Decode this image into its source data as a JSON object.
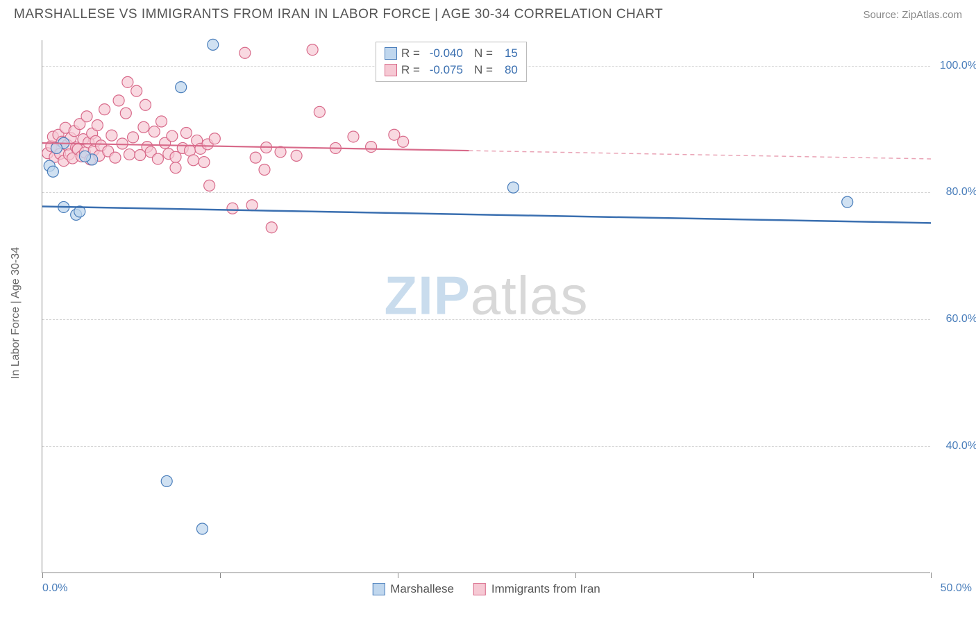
{
  "header": {
    "title": "MARSHALLESE VS IMMIGRANTS FROM IRAN IN LABOR FORCE | AGE 30-34 CORRELATION CHART",
    "source": "Source: ZipAtlas.com"
  },
  "chart": {
    "type": "scatter",
    "ylabel": "In Labor Force | Age 30-34",
    "watermark_a": "ZIP",
    "watermark_b": "atlas",
    "xlim": [
      0,
      50
    ],
    "ylim": [
      20,
      104
    ],
    "x_ticks": [
      0,
      10,
      20,
      30,
      40,
      50
    ],
    "x_tick_labels": {
      "left": "0.0%",
      "right": "50.0%"
    },
    "y_grid": [
      40,
      60,
      80,
      100
    ],
    "y_tick_labels": [
      "40.0%",
      "60.0%",
      "80.0%",
      "100.0%"
    ],
    "background_color": "#ffffff",
    "grid_color": "#d5d5d5",
    "axis_color": "#888888",
    "marker_radius": 8,
    "series": {
      "blue": {
        "name": "Marshallese",
        "color_fill": "#c0d7ee",
        "color_stroke": "#4a7ebb",
        "R": "-0.040",
        "N": "15",
        "trend": {
          "x1": 0,
          "y1": 77.8,
          "x2": 50,
          "y2": 75.2
        },
        "points": [
          {
            "x": 0.4,
            "y": 84.2
          },
          {
            "x": 1.2,
            "y": 87.8
          },
          {
            "x": 0.6,
            "y": 83.3
          },
          {
            "x": 1.2,
            "y": 77.7
          },
          {
            "x": 1.9,
            "y": 76.5
          },
          {
            "x": 2.1,
            "y": 77.0
          },
          {
            "x": 2.8,
            "y": 85.2
          },
          {
            "x": 7.0,
            "y": 34.5
          },
          {
            "x": 7.8,
            "y": 96.6
          },
          {
            "x": 9.0,
            "y": 27.0
          },
          {
            "x": 9.6,
            "y": 103.3
          },
          {
            "x": 26.5,
            "y": 80.8
          },
          {
            "x": 45.3,
            "y": 78.5
          },
          {
            "x": 2.4,
            "y": 85.7
          },
          {
            "x": 0.8,
            "y": 87.0
          }
        ]
      },
      "pink": {
        "name": "Immigrants from Iran",
        "color_fill": "#f6c9d4",
        "color_stroke": "#d86a8a",
        "R": "-0.075",
        "N": "80",
        "trend_solid": {
          "x1": 0,
          "y1": 87.8,
          "x2": 24,
          "y2": 86.6
        },
        "trend_dash": {
          "x1": 24,
          "y1": 86.6,
          "x2": 50,
          "y2": 85.3
        },
        "points": [
          {
            "x": 0.3,
            "y": 86.2
          },
          {
            "x": 0.5,
            "y": 87.3
          },
          {
            "x": 0.6,
            "y": 88.8
          },
          {
            "x": 0.7,
            "y": 85.6
          },
          {
            "x": 0.8,
            "y": 87.0
          },
          {
            "x": 0.9,
            "y": 89.1
          },
          {
            "x": 1.0,
            "y": 86.1
          },
          {
            "x": 1.1,
            "y": 88.0
          },
          {
            "x": 1.2,
            "y": 85.0
          },
          {
            "x": 1.3,
            "y": 90.2
          },
          {
            "x": 1.4,
            "y": 87.5
          },
          {
            "x": 1.5,
            "y": 86.0
          },
          {
            "x": 1.6,
            "y": 88.6
          },
          {
            "x": 1.7,
            "y": 85.4
          },
          {
            "x": 1.8,
            "y": 89.7
          },
          {
            "x": 1.9,
            "y": 87.1
          },
          {
            "x": 2.0,
            "y": 86.8
          },
          {
            "x": 2.1,
            "y": 90.8
          },
          {
            "x": 2.2,
            "y": 85.7
          },
          {
            "x": 2.3,
            "y": 88.4
          },
          {
            "x": 2.4,
            "y": 86.3
          },
          {
            "x": 2.5,
            "y": 92.0
          },
          {
            "x": 2.6,
            "y": 87.9
          },
          {
            "x": 2.7,
            "y": 85.2
          },
          {
            "x": 2.8,
            "y": 89.3
          },
          {
            "x": 2.9,
            "y": 86.7
          },
          {
            "x": 3.0,
            "y": 88.1
          },
          {
            "x": 3.1,
            "y": 90.6
          },
          {
            "x": 3.2,
            "y": 85.8
          },
          {
            "x": 3.3,
            "y": 87.4
          },
          {
            "x": 3.5,
            "y": 93.1
          },
          {
            "x": 3.7,
            "y": 86.5
          },
          {
            "x": 3.9,
            "y": 89.0
          },
          {
            "x": 4.1,
            "y": 85.5
          },
          {
            "x": 4.3,
            "y": 94.5
          },
          {
            "x": 4.5,
            "y": 87.7
          },
          {
            "x": 4.7,
            "y": 92.5
          },
          {
            "x": 4.8,
            "y": 97.4
          },
          {
            "x": 4.9,
            "y": 86.0
          },
          {
            "x": 5.1,
            "y": 88.7
          },
          {
            "x": 5.3,
            "y": 96.0
          },
          {
            "x": 5.5,
            "y": 85.9
          },
          {
            "x": 5.7,
            "y": 90.3
          },
          {
            "x": 5.8,
            "y": 93.8
          },
          {
            "x": 5.9,
            "y": 87.2
          },
          {
            "x": 6.1,
            "y": 86.4
          },
          {
            "x": 6.3,
            "y": 89.6
          },
          {
            "x": 6.5,
            "y": 85.3
          },
          {
            "x": 6.7,
            "y": 91.2
          },
          {
            "x": 6.9,
            "y": 87.8
          },
          {
            "x": 7.1,
            "y": 86.1
          },
          {
            "x": 7.3,
            "y": 88.9
          },
          {
            "x": 7.5,
            "y": 85.6
          },
          {
            "x": 7.5,
            "y": 83.9
          },
          {
            "x": 7.9,
            "y": 87.0
          },
          {
            "x": 8.1,
            "y": 89.4
          },
          {
            "x": 8.3,
            "y": 86.6
          },
          {
            "x": 8.5,
            "y": 85.1
          },
          {
            "x": 8.7,
            "y": 88.2
          },
          {
            "x": 8.9,
            "y": 86.9
          },
          {
            "x": 9.1,
            "y": 84.8
          },
          {
            "x": 9.3,
            "y": 87.6
          },
          {
            "x": 9.4,
            "y": 81.1
          },
          {
            "x": 9.7,
            "y": 88.5
          },
          {
            "x": 10.7,
            "y": 77.5
          },
          {
            "x": 11.4,
            "y": 102.0
          },
          {
            "x": 11.8,
            "y": 78.0
          },
          {
            "x": 12.0,
            "y": 85.5
          },
          {
            "x": 12.5,
            "y": 83.6
          },
          {
            "x": 12.6,
            "y": 87.1
          },
          {
            "x": 12.9,
            "y": 74.5
          },
          {
            "x": 13.4,
            "y": 86.4
          },
          {
            "x": 14.3,
            "y": 85.8
          },
          {
            "x": 15.2,
            "y": 102.5
          },
          {
            "x": 15.6,
            "y": 92.7
          },
          {
            "x": 16.5,
            "y": 87.0
          },
          {
            "x": 17.5,
            "y": 88.8
          },
          {
            "x": 18.5,
            "y": 87.2
          },
          {
            "x": 19.8,
            "y": 89.1
          },
          {
            "x": 20.3,
            "y": 88.0
          }
        ]
      }
    },
    "legend_bottom": [
      {
        "swatch": "blue",
        "label": "Marshallese"
      },
      {
        "swatch": "pink",
        "label": "Immigrants from Iran"
      }
    ]
  }
}
